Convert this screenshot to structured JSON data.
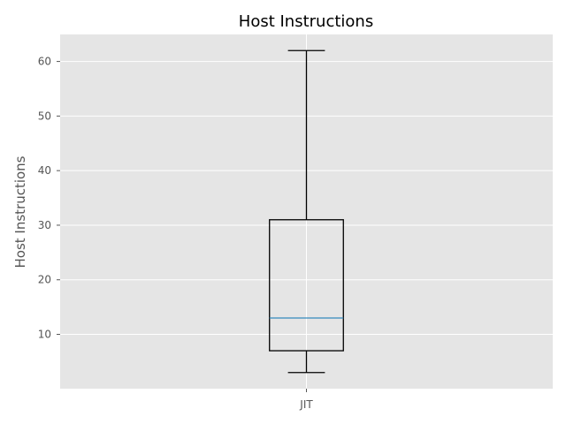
{
  "chart_data": {
    "type": "box",
    "title": "Host Instructions",
    "xlabel": "",
    "ylabel": "Host Instructions",
    "categories": [
      "JIT"
    ],
    "boxes": [
      {
        "category": "JIT",
        "whisker_low": 3,
        "q1": 7,
        "median": 13,
        "q3": 31,
        "whisker_high": 62
      }
    ],
    "y_ticks": [
      10,
      20,
      30,
      40,
      50,
      60
    ],
    "ylim": [
      0.05,
      64.95
    ],
    "grid": true,
    "colors": {
      "plot_background": "#e5e5e5",
      "grid": "#ffffff",
      "box_edge": "#000000",
      "median": "#348abd",
      "tick_text": "#555555"
    }
  }
}
